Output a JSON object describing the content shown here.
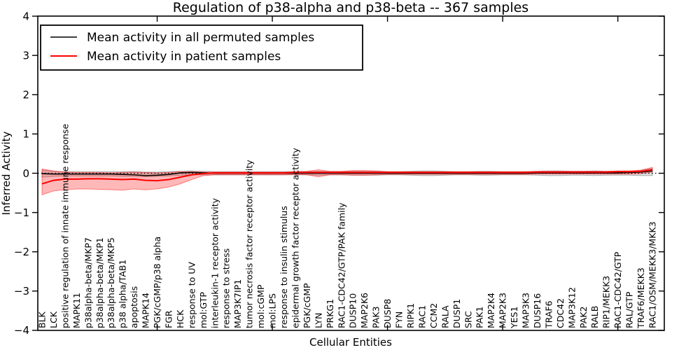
{
  "window": {
    "background_color": "#ffffff"
  },
  "chart_data": {
    "type": "line",
    "title": "Regulation of p38-alpha and p38-beta -- 367 samples",
    "xlabel": "Cellular Entities",
    "ylabel": "Inferred Activity",
    "ylim": [
      -4,
      4
    ],
    "ytick_values": [
      4,
      3,
      2,
      1,
      0,
      -1,
      -2,
      -3,
      -4
    ],
    "ytick_labels": [
      "4",
      "3",
      "2",
      "1",
      "0",
      "−1",
      "−2",
      "−3",
      "−4"
    ],
    "grid": false,
    "zero_line": {
      "value": 0,
      "style": "dotted",
      "color": "#000000"
    },
    "legend_position": "upper left",
    "categories": [
      "BLK",
      "LCK",
      "positive regulation of innate immune response",
      "MAPK11",
      "p38alpha-beta/MKP7",
      "p38alpha-beta/MKP1",
      "p38alpha-beta/MKP5",
      "p38 alpha/TAB1",
      "apoptosis",
      "MAPK14",
      "PGK/cGMP/p38 alpha",
      "FGR",
      "HCK",
      "response to UV",
      "mol:GTP",
      "interleukin-1 receptor activity",
      "response to stress",
      "MAP3K7IP1",
      "tumor necrosis factor receptor activity",
      "mol:cGMP",
      "mol:LPS",
      "response to insulin stimulus",
      "epidermal growth factor receptor activity",
      "PGK/cGMP",
      "LYN",
      "PRKG1",
      "RAC1-CDC42/GTP/PAK family",
      "DUSP10",
      "MAP2K6",
      "PAK3",
      "DUSP8",
      "FYN",
      "RIPK1",
      "RAC1",
      "CCM2",
      "RALA",
      "DUSP1",
      "SRC",
      "PAK1",
      "MAP2K4",
      "MAP2K3",
      "YES1",
      "MAP3K3",
      "DUSP16",
      "TRAF6",
      "CDC42",
      "MAP3K12",
      "PAK2",
      "RALB",
      "RIP1/MEKK3",
      "RAC1-CDC42/GTP",
      "RAL/GTP",
      "TRAF6/MEKK3",
      "RAC1/OSM/MEKK3/MKK3"
    ],
    "series": [
      {
        "name": "Mean activity in all permuted samples",
        "color": "#000000",
        "band_fill_color": "#000000",
        "band_fill_alpha": 0.12,
        "values": [
          -0.01,
          -0.02,
          -0.02,
          -0.02,
          -0.02,
          -0.02,
          -0.02,
          -0.03,
          -0.04,
          -0.06,
          -0.05,
          -0.03,
          0.01,
          0.02,
          0.01,
          0.0,
          0.0,
          0.0,
          0.0,
          0.0,
          0.0,
          0.0,
          0.0,
          0.0,
          0.0,
          0.0,
          0.0,
          0.0,
          0.0,
          0.0,
          0.0,
          0.0,
          0.0,
          0.0,
          0.0,
          0.0,
          0.0,
          0.0,
          0.0,
          0.0,
          0.0,
          0.0,
          0.0,
          0.01,
          0.01,
          0.01,
          0.01,
          0.01,
          0.01,
          0.01,
          0.01,
          0.02,
          0.03,
          0.06
        ],
        "band_upper": [
          0.08,
          0.05,
          0.04,
          0.04,
          0.04,
          0.04,
          0.04,
          0.04,
          0.04,
          0.03,
          0.03,
          0.04,
          0.05,
          0.06,
          0.05,
          0.04,
          0.04,
          0.04,
          0.04,
          0.04,
          0.04,
          0.04,
          0.04,
          0.04,
          0.05,
          0.04,
          0.04,
          0.05,
          0.05,
          0.05,
          0.04,
          0.04,
          0.05,
          0.06,
          0.06,
          0.05,
          0.04,
          0.04,
          0.05,
          0.05,
          0.04,
          0.04,
          0.04,
          0.05,
          0.06,
          0.06,
          0.05,
          0.05,
          0.06,
          0.05,
          0.05,
          0.05,
          0.07,
          0.12
        ],
        "band_lower": [
          -0.1,
          -0.08,
          -0.07,
          -0.07,
          -0.07,
          -0.07,
          -0.07,
          -0.08,
          -0.08,
          -0.09,
          -0.08,
          -0.07,
          -0.05,
          -0.04,
          -0.04,
          -0.04,
          -0.04,
          -0.04,
          -0.04,
          -0.04,
          -0.04,
          -0.04,
          -0.04,
          -0.04,
          -0.05,
          -0.04,
          -0.04,
          -0.05,
          -0.05,
          -0.05,
          -0.04,
          -0.04,
          -0.05,
          -0.06,
          -0.06,
          -0.05,
          -0.04,
          -0.04,
          -0.05,
          -0.05,
          -0.04,
          -0.04,
          -0.04,
          -0.05,
          -0.06,
          -0.06,
          -0.05,
          -0.05,
          -0.06,
          -0.05,
          -0.05,
          -0.05,
          -0.06,
          -0.06
        ]
      },
      {
        "name": "Mean activity in patient samples",
        "color": "#ff0000",
        "band_fill_color": "#ff0000",
        "band_fill_alpha": 0.28,
        "values": [
          -0.27,
          -0.18,
          -0.15,
          -0.15,
          -0.14,
          -0.14,
          -0.15,
          -0.16,
          -0.15,
          -0.18,
          -0.19,
          -0.16,
          -0.1,
          -0.04,
          -0.01,
          0.01,
          0.01,
          0.01,
          0.01,
          0.01,
          0.01,
          0.01,
          0.02,
          0.02,
          0.02,
          0.02,
          0.02,
          0.02,
          0.02,
          0.02,
          0.02,
          0.02,
          0.02,
          0.02,
          0.02,
          0.02,
          0.02,
          0.02,
          0.02,
          0.02,
          0.02,
          0.02,
          0.02,
          0.03,
          0.03,
          0.03,
          0.03,
          0.03,
          0.03,
          0.03,
          0.04,
          0.04,
          0.05,
          0.09
        ],
        "band_upper": [
          0.11,
          0.06,
          0.03,
          0.02,
          0.02,
          0.02,
          0.01,
          0.02,
          0.03,
          0.02,
          0.01,
          0.02,
          0.04,
          0.04,
          0.03,
          0.03,
          0.03,
          0.03,
          0.03,
          0.03,
          0.03,
          0.03,
          0.04,
          0.05,
          0.09,
          0.05,
          0.05,
          0.07,
          0.07,
          0.06,
          0.04,
          0.04,
          0.04,
          0.04,
          0.04,
          0.04,
          0.04,
          0.04,
          0.04,
          0.04,
          0.04,
          0.04,
          0.04,
          0.05,
          0.05,
          0.05,
          0.05,
          0.05,
          0.05,
          0.05,
          0.06,
          0.06,
          0.08,
          0.15
        ],
        "band_lower": [
          -0.55,
          -0.45,
          -0.42,
          -0.4,
          -0.4,
          -0.41,
          -0.42,
          -0.43,
          -0.4,
          -0.42,
          -0.4,
          -0.35,
          -0.27,
          -0.16,
          -0.06,
          -0.04,
          -0.04,
          -0.04,
          -0.04,
          -0.04,
          -0.04,
          -0.04,
          -0.03,
          -0.04,
          -0.09,
          -0.04,
          -0.04,
          -0.05,
          -0.05,
          -0.04,
          -0.03,
          -0.03,
          -0.03,
          -0.03,
          -0.03,
          -0.03,
          -0.03,
          -0.03,
          -0.03,
          -0.03,
          -0.03,
          -0.03,
          -0.03,
          -0.02,
          -0.02,
          -0.02,
          -0.02,
          -0.02,
          -0.02,
          -0.02,
          -0.02,
          -0.02,
          -0.01,
          0.03
        ]
      }
    ]
  }
}
